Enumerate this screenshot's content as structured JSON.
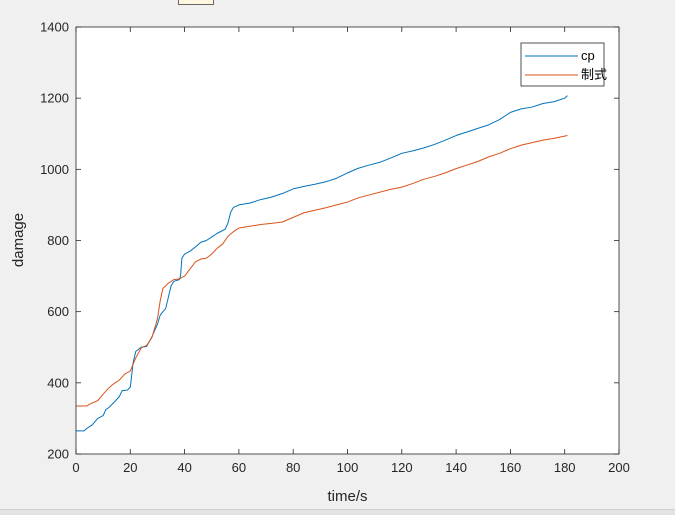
{
  "chart_data": {
    "type": "line",
    "title": "",
    "xlabel": "time/s",
    "ylabel": "damage",
    "xlim": [
      0,
      200
    ],
    "ylim": [
      200,
      1400
    ],
    "xticks": [
      0,
      20,
      40,
      60,
      80,
      100,
      120,
      140,
      160,
      180,
      200
    ],
    "yticks": [
      200,
      400,
      600,
      800,
      1000,
      1200,
      1400
    ],
    "grid": false,
    "legend_position": "top-right",
    "series": [
      {
        "name": "cp",
        "color": "#0072BD",
        "points": [
          [
            0,
            265
          ],
          [
            3,
            265
          ],
          [
            4,
            272
          ],
          [
            6,
            282
          ],
          [
            8,
            300
          ],
          [
            10,
            308
          ],
          [
            11,
            325
          ],
          [
            12,
            330
          ],
          [
            14,
            345
          ],
          [
            16,
            362
          ],
          [
            17,
            378
          ],
          [
            19,
            380
          ],
          [
            20,
            388
          ],
          [
            20.5,
            420
          ],
          [
            21,
            455
          ],
          [
            22,
            488
          ],
          [
            24,
            500
          ],
          [
            26,
            502
          ],
          [
            28,
            530
          ],
          [
            30,
            565
          ],
          [
            31,
            590
          ],
          [
            32,
            600
          ],
          [
            33,
            608
          ],
          [
            34,
            640
          ],
          [
            35,
            672
          ],
          [
            36,
            685
          ],
          [
            38,
            690
          ],
          [
            38.5,
            700
          ],
          [
            39,
            750
          ],
          [
            40,
            762
          ],
          [
            42,
            770
          ],
          [
            44,
            782
          ],
          [
            46,
            795
          ],
          [
            48,
            800
          ],
          [
            50,
            810
          ],
          [
            52,
            820
          ],
          [
            55,
            832
          ],
          [
            56,
            850
          ],
          [
            57,
            880
          ],
          [
            58,
            893
          ],
          [
            60,
            900
          ],
          [
            64,
            905
          ],
          [
            68,
            915
          ],
          [
            72,
            922
          ],
          [
            76,
            932
          ],
          [
            80,
            945
          ],
          [
            84,
            952
          ],
          [
            88,
            958
          ],
          [
            92,
            965
          ],
          [
            96,
            975
          ],
          [
            100,
            990
          ],
          [
            104,
            1003
          ],
          [
            108,
            1012
          ],
          [
            112,
            1020
          ],
          [
            116,
            1032
          ],
          [
            120,
            1045
          ],
          [
            124,
            1052
          ],
          [
            128,
            1060
          ],
          [
            132,
            1070
          ],
          [
            136,
            1082
          ],
          [
            140,
            1095
          ],
          [
            144,
            1105
          ],
          [
            148,
            1115
          ],
          [
            152,
            1125
          ],
          [
            156,
            1140
          ],
          [
            160,
            1160
          ],
          [
            164,
            1170
          ],
          [
            168,
            1175
          ],
          [
            172,
            1185
          ],
          [
            176,
            1190
          ],
          [
            180,
            1200
          ],
          [
            181,
            1207
          ]
        ]
      },
      {
        "name": "制式",
        "color": "#D95319",
        "points": [
          [
            0,
            335
          ],
          [
            4,
            335
          ],
          [
            5,
            340
          ],
          [
            8,
            350
          ],
          [
            10,
            368
          ],
          [
            12,
            385
          ],
          [
            14,
            398
          ],
          [
            16,
            408
          ],
          [
            18,
            425
          ],
          [
            20,
            433
          ],
          [
            22,
            470
          ],
          [
            24,
            498
          ],
          [
            26,
            505
          ],
          [
            28,
            528
          ],
          [
            30,
            580
          ],
          [
            31,
            630
          ],
          [
            32,
            665
          ],
          [
            34,
            680
          ],
          [
            36,
            690
          ],
          [
            38,
            692
          ],
          [
            40,
            700
          ],
          [
            42,
            720
          ],
          [
            44,
            740
          ],
          [
            46,
            748
          ],
          [
            48,
            750
          ],
          [
            50,
            762
          ],
          [
            52,
            778
          ],
          [
            54,
            790
          ],
          [
            56,
            812
          ],
          [
            58,
            825
          ],
          [
            60,
            835
          ],
          [
            64,
            840
          ],
          [
            68,
            845
          ],
          [
            72,
            848
          ],
          [
            76,
            852
          ],
          [
            80,
            865
          ],
          [
            84,
            878
          ],
          [
            88,
            885
          ],
          [
            92,
            892
          ],
          [
            96,
            900
          ],
          [
            100,
            908
          ],
          [
            104,
            920
          ],
          [
            108,
            928
          ],
          [
            112,
            936
          ],
          [
            116,
            944
          ],
          [
            120,
            950
          ],
          [
            124,
            960
          ],
          [
            128,
            972
          ],
          [
            132,
            980
          ],
          [
            136,
            990
          ],
          [
            140,
            1002
          ],
          [
            144,
            1012
          ],
          [
            148,
            1022
          ],
          [
            152,
            1035
          ],
          [
            156,
            1045
          ],
          [
            160,
            1058
          ],
          [
            164,
            1068
          ],
          [
            168,
            1075
          ],
          [
            172,
            1082
          ],
          [
            176,
            1087
          ],
          [
            181,
            1095
          ]
        ]
      }
    ]
  }
}
